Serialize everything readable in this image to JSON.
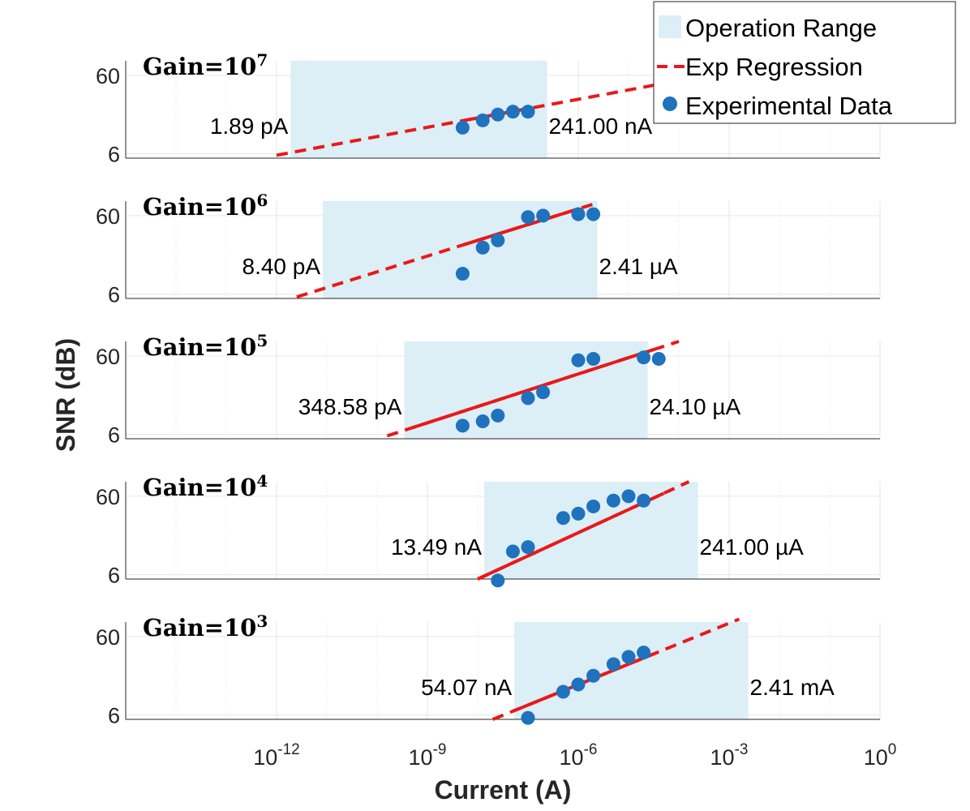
{
  "chart_data": {
    "type": "scatter",
    "xscale": "log",
    "xlim_exponent": [
      -15,
      0
    ],
    "xticks": [
      {
        "base": "10",
        "exp": "-12"
      },
      {
        "base": "10",
        "exp": "-9"
      },
      {
        "base": "10",
        "exp": "-6"
      },
      {
        "base": "10",
        "exp": "-3"
      },
      {
        "base": "10",
        "exp": "0"
      }
    ],
    "xlabel": "Current (A)",
    "ylabel": "SNR (dB)",
    "yticks": [
      "6",
      "60"
    ],
    "ylim_db": [
      3,
      70
    ],
    "colors": {
      "range": "#dceef6",
      "fit": "#e8191a",
      "data": "#1f72bd",
      "grid": "#e6e6e6"
    },
    "legend": {
      "position": "top-right",
      "entries": [
        {
          "kind": "patch",
          "label": "Operation Range"
        },
        {
          "kind": "dashed-line",
          "label": "Exp Regression"
        },
        {
          "kind": "marker",
          "label": "Experimental Data"
        }
      ]
    },
    "panels": [
      {
        "title_prefix": "Gain=10",
        "title_exp": "7",
        "range_log": [
          -11.72,
          -6.62
        ],
        "low_label": "1.89 pA",
        "high_label": "241.00 nA",
        "fit_log": [
          -12.0,
          -2.5
        ],
        "fit_db": [
          5.0,
          66.0
        ],
        "fit_solid_log": [
          -8.3,
          -7.0
        ],
        "points": [
          [
            -8.3,
            24
          ],
          [
            -7.9,
            29
          ],
          [
            -7.6,
            33
          ],
          [
            -7.3,
            35
          ],
          [
            -7.0,
            35
          ]
        ]
      },
      {
        "title_prefix": "Gain=10",
        "title_exp": "6",
        "range_log": [
          -11.08,
          -5.62
        ],
        "low_label": "8.40 pA",
        "high_label": "2.41 µA",
        "fit_log": [
          -11.6,
          -5.6
        ],
        "fit_db": [
          4.0,
          69.0
        ],
        "fit_solid_log": [
          -8.3,
          -6.0
        ],
        "points": [
          [
            -8.3,
            20
          ],
          [
            -7.9,
            38
          ],
          [
            -7.6,
            43
          ],
          [
            -7.0,
            59
          ],
          [
            -6.7,
            60
          ],
          [
            -6.0,
            61
          ],
          [
            -5.7,
            61
          ]
        ]
      },
      {
        "title_prefix": "Gain=10",
        "title_exp": "5",
        "range_log": [
          -9.46,
          -4.62
        ],
        "low_label": "348.58 pA",
        "high_label": "24.10 µA",
        "fit_log": [
          -9.8,
          -4.0
        ],
        "fit_db": [
          5.0,
          70.0
        ],
        "fit_solid_log": [
          -9.3,
          -4.5
        ],
        "points": [
          [
            -8.3,
            12
          ],
          [
            -7.9,
            15
          ],
          [
            -7.6,
            19
          ],
          [
            -7.0,
            31
          ],
          [
            -6.7,
            35
          ],
          [
            -6.0,
            57
          ],
          [
            -5.7,
            58
          ],
          [
            -4.7,
            59
          ],
          [
            -4.4,
            58
          ]
        ]
      },
      {
        "title_prefix": "Gain=10",
        "title_exp": "4",
        "range_log": [
          -7.87,
          -3.62
        ],
        "low_label": "13.49 nA",
        "high_label": "241.00 µA",
        "fit_log": [
          -8.0,
          -3.8
        ],
        "fit_db": [
          3.0,
          70.0
        ],
        "fit_solid_log": [
          -8.0,
          -4.3
        ],
        "points": [
          [
            -7.6,
            2
          ],
          [
            -7.3,
            22
          ],
          [
            -7.0,
            25
          ],
          [
            -6.3,
            45
          ],
          [
            -6.0,
            48
          ],
          [
            -5.7,
            53
          ],
          [
            -5.3,
            57
          ],
          [
            -5.0,
            60
          ],
          [
            -4.7,
            57
          ]
        ]
      },
      {
        "title_prefix": "Gain=10",
        "title_exp": "3",
        "range_log": [
          -7.27,
          -2.62
        ],
        "low_label": "54.07 nA",
        "high_label": "2.41 mA",
        "fit_log": [
          -7.7,
          -2.8
        ],
        "fit_db": [
          3.0,
          72.0
        ],
        "fit_solid_log": [
          -7.3,
          -4.5
        ],
        "points": [
          [
            -7.0,
            4
          ],
          [
            -6.3,
            22
          ],
          [
            -6.0,
            27
          ],
          [
            -5.7,
            33
          ],
          [
            -5.3,
            41
          ],
          [
            -5.0,
            46
          ],
          [
            -4.7,
            49
          ]
        ]
      }
    ]
  }
}
